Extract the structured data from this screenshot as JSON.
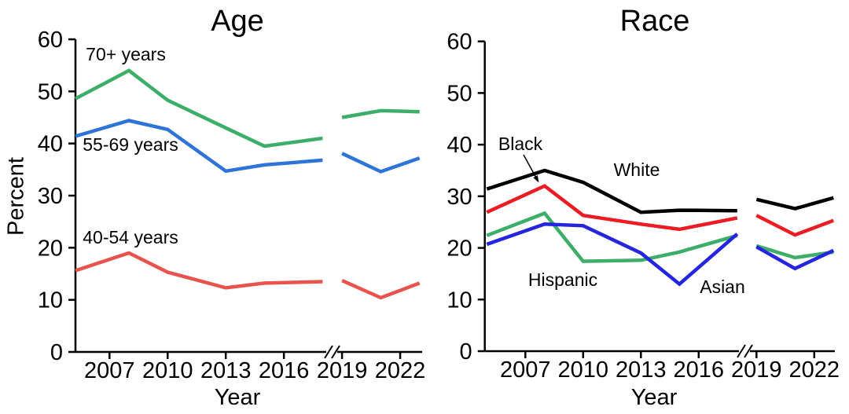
{
  "figure": {
    "background": "#ffffff",
    "y_axis_break_note": "axis break marks between 2016 and 2019 ticks"
  },
  "chart_data": [
    {
      "type": "line",
      "title": "Age",
      "xlabel": "Year",
      "ylabel": "Percent",
      "ylim": [
        0,
        60
      ],
      "yticks": [
        0,
        10,
        20,
        30,
        40,
        50,
        60
      ],
      "xticks": [
        2007,
        2010,
        2013,
        2016,
        2019,
        2022
      ],
      "xlim": [
        2005,
        2023.3
      ],
      "grid": false,
      "legend": "inline text labels next to lines",
      "axis_break_between": [
        2018,
        2019
      ],
      "series": [
        {
          "name": "70+ years",
          "color": "#3cae6a",
          "segments": [
            [
              [
                2005,
                48.6
              ],
              [
                2008,
                54.0
              ],
              [
                2010,
                48.3
              ],
              [
                2013,
                43.0
              ],
              [
                2015,
                39.5
              ],
              [
                2018,
                41.0
              ]
            ],
            [
              [
                2019,
                45.0
              ],
              [
                2021,
                46.3
              ],
              [
                2023,
                46.1
              ]
            ]
          ]
        },
        {
          "name": "55-69 years",
          "color": "#2e74d8",
          "segments": [
            [
              [
                2005,
                41.4
              ],
              [
                2008,
                44.4
              ],
              [
                2010,
                42.7
              ],
              [
                2013,
                34.7
              ],
              [
                2015,
                35.9
              ],
              [
                2018,
                36.8
              ]
            ],
            [
              [
                2019,
                38.1
              ],
              [
                2021,
                34.6
              ],
              [
                2023,
                37.2
              ]
            ]
          ]
        },
        {
          "name": "40-54 years",
          "color": "#e9534e",
          "segments": [
            [
              [
                2005,
                15.6
              ],
              [
                2008,
                19.0
              ],
              [
                2010,
                15.3
              ],
              [
                2013,
                12.3
              ],
              [
                2015,
                13.2
              ],
              [
                2018,
                13.5
              ]
            ],
            [
              [
                2019,
                13.7
              ],
              [
                2021,
                10.4
              ],
              [
                2023,
                13.2
              ]
            ]
          ]
        }
      ]
    },
    {
      "type": "line",
      "title": "Race",
      "xlabel": "Year",
      "ylabel": "",
      "ylim": [
        0,
        60
      ],
      "yticks": [
        0,
        10,
        20,
        30,
        40,
        50,
        60
      ],
      "xticks": [
        2007,
        2010,
        2013,
        2016,
        2019,
        2022
      ],
      "xlim": [
        2005,
        2023.3
      ],
      "grid": false,
      "legend": "inline text labels, Black label has arrow to red line",
      "axis_break_between": [
        2018,
        2019
      ],
      "series": [
        {
          "name": "White",
          "color": "#000000",
          "segments": [
            [
              [
                2005,
                31.4
              ],
              [
                2008,
                35.0
              ],
              [
                2010,
                32.7
              ],
              [
                2013,
                26.9
              ],
              [
                2015,
                27.3
              ],
              [
                2018,
                27.2
              ]
            ],
            [
              [
                2019,
                29.4
              ],
              [
                2021,
                27.6
              ],
              [
                2023,
                29.7
              ]
            ]
          ]
        },
        {
          "name": "Black",
          "color": "#ec1c24",
          "segments": [
            [
              [
                2005,
                26.9
              ],
              [
                2008,
                32.0
              ],
              [
                2010,
                26.3
              ],
              [
                2013,
                24.6
              ],
              [
                2015,
                23.6
              ],
              [
                2018,
                25.8
              ]
            ],
            [
              [
                2019,
                26.3
              ],
              [
                2021,
                22.5
              ],
              [
                2023,
                25.3
              ]
            ]
          ]
        },
        {
          "name": "Hispanic",
          "color": "#3cae6a",
          "segments": [
            [
              [
                2005,
                22.4
              ],
              [
                2008,
                26.7
              ],
              [
                2010,
                17.4
              ],
              [
                2013,
                17.6
              ],
              [
                2015,
                19.2
              ],
              [
                2018,
                22.4
              ]
            ],
            [
              [
                2019,
                20.4
              ],
              [
                2021,
                18.1
              ],
              [
                2023,
                19.2
              ]
            ]
          ]
        },
        {
          "name": "Asian",
          "color": "#2525df",
          "segments": [
            [
              [
                2005,
                20.7
              ],
              [
                2008,
                24.6
              ],
              [
                2010,
                24.3
              ],
              [
                2013,
                19.0
              ],
              [
                2015,
                13.0
              ],
              [
                2018,
                22.7
              ]
            ],
            [
              [
                2019,
                20.2
              ],
              [
                2021,
                16.0
              ],
              [
                2023,
                19.5
              ]
            ]
          ]
        }
      ]
    }
  ]
}
